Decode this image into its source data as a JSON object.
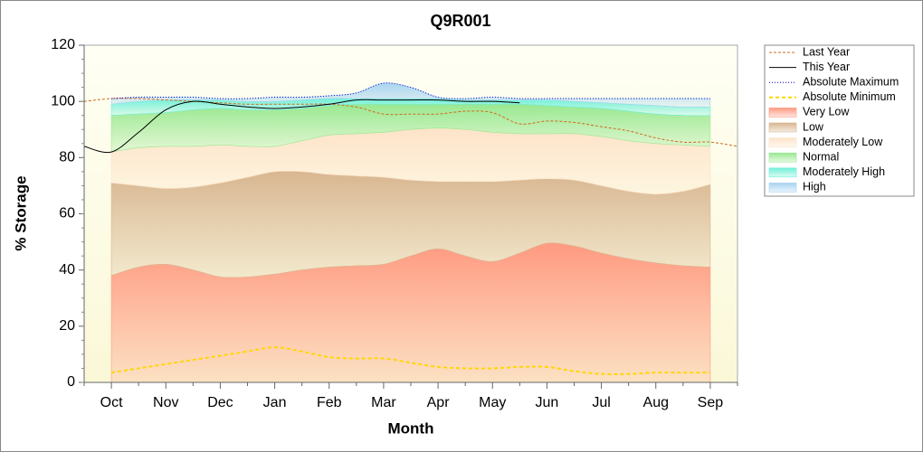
{
  "chart_data": {
    "type": "stacked-area-line",
    "title": "Q9R001",
    "xlabel": "Month",
    "ylabel": "% Storage",
    "categories": [
      null,
      "Oct",
      null,
      "Nov",
      null,
      "Dec",
      null,
      "Jan",
      null,
      "Feb",
      null,
      "Mar",
      null,
      "Apr",
      null,
      "May",
      null,
      "Jun",
      null,
      "Jul",
      null,
      "Aug",
      null,
      "Sep",
      null
    ],
    "ylim": [
      0,
      120
    ],
    "yticks": [
      0,
      20,
      40,
      60,
      80,
      100,
      120
    ],
    "legend": "right",
    "series": [
      {
        "name": "Last Year",
        "kind": "line",
        "style": "dashed",
        "color": "#d2691e",
        "values": [
          100,
          101,
          101,
          100.5,
          100,
          99.5,
          99,
          99,
          99,
          99,
          98,
          95.5,
          95.5,
          95.5,
          96.5,
          96,
          92,
          93,
          92.5,
          91,
          89.5,
          87,
          85.5,
          85.5,
          84
        ]
      },
      {
        "name": "This Year",
        "kind": "line",
        "style": "solid",
        "color": "#000000",
        "values": [
          84,
          82,
          89,
          97,
          100,
          99,
          98,
          97.5,
          98,
          99,
          100.5,
          100.5,
          100.5,
          100.5,
          100,
          100,
          99.5,
          null,
          null,
          null,
          null,
          null,
          null,
          null,
          null
        ]
      },
      {
        "name": "Absolute Maximum",
        "kind": "line",
        "style": "dotted",
        "color": "#0000cc",
        "values": [
          null,
          101,
          101.5,
          101.5,
          101.5,
          101,
          101,
          101.5,
          101.5,
          102,
          103,
          106.5,
          105,
          101.5,
          101,
          101.5,
          101,
          101,
          101,
          101,
          101,
          101,
          101,
          101,
          null
        ]
      },
      {
        "name": "Absolute Minimum",
        "kind": "line",
        "style": "dashed-thick",
        "color": "#ffd700",
        "values": [
          null,
          3.5,
          5,
          6.5,
          8,
          9.5,
          11,
          12.5,
          11,
          9,
          8.5,
          8.5,
          7,
          5.5,
          5,
          5,
          5.5,
          5.5,
          4,
          3,
          3,
          3.5,
          3.5,
          3.5,
          null
        ]
      },
      {
        "name": "Very Low",
        "kind": "area",
        "color": "#ff9a80",
        "values": [
          null,
          38,
          41,
          42,
          40,
          37.5,
          37.5,
          38.5,
          40,
          41,
          41.5,
          42,
          45,
          47.5,
          45,
          43,
          46,
          49.5,
          48.5,
          46,
          44,
          42.5,
          41.5,
          41,
          null
        ]
      },
      {
        "name": "Low",
        "kind": "area",
        "color": "#d8b690",
        "values": [
          null,
          33,
          29,
          27,
          29.5,
          33.5,
          35.5,
          36.5,
          35,
          33,
          32,
          31,
          27,
          24,
          26.5,
          28.5,
          26,
          23,
          23.5,
          24,
          24,
          24.5,
          26.5,
          29.5,
          null
        ]
      },
      {
        "name": "Moderately Low",
        "kind": "area",
        "color": "#fde3c8",
        "values": [
          null,
          11,
          13.5,
          15,
          14.5,
          13.5,
          11,
          9,
          11,
          14,
          15,
          16,
          18,
          19,
          18.5,
          17.5,
          16.5,
          16,
          16.5,
          17.5,
          18,
          18,
          16.5,
          13.5,
          null
        ]
      },
      {
        "name": "Normal",
        "kind": "area",
        "color": "#99e890",
        "values": [
          null,
          13,
          12,
          12,
          13,
          13,
          13,
          13,
          11.5,
          10.5,
          10.5,
          10,
          9,
          8.5,
          9,
          10,
          10.5,
          10,
          9.5,
          10,
          10.5,
          10.5,
          10.5,
          11,
          null
        ]
      },
      {
        "name": "Moderately High",
        "kind": "area",
        "color": "#70f0d8",
        "values": [
          null,
          4,
          4.5,
          4.5,
          3.5,
          3,
          3,
          3,
          3,
          2.5,
          2,
          2,
          2,
          2,
          1.5,
          1.5,
          1.5,
          2,
          2,
          2,
          2.5,
          3,
          3,
          3,
          null
        ]
      },
      {
        "name": "High",
        "kind": "area",
        "color": "#a8d4f0",
        "values": [
          null,
          2,
          1.5,
          1,
          1,
          0.5,
          1,
          1.5,
          1,
          1,
          2,
          5.5,
          4,
          0.5,
          0.5,
          1,
          0.5,
          0.5,
          1,
          1.5,
          2,
          2.5,
          3,
          3,
          null
        ]
      }
    ]
  }
}
